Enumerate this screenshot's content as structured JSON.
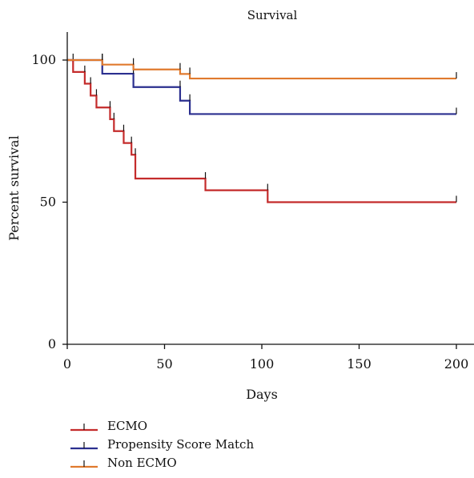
{
  "chart_data": {
    "type": "line",
    "step": true,
    "title": "Survival",
    "xlabel": "Days",
    "ylabel": "Percent survival",
    "xlim": [
      0,
      205
    ],
    "ylim": [
      0,
      110
    ],
    "xticks": [
      0,
      50,
      100,
      150,
      200
    ],
    "yticks": [
      0,
      50,
      100
    ],
    "grid": false,
    "legend_position": "bottom-left",
    "series": [
      {
        "name": "ECMO",
        "color": "#c42b2b",
        "censor_ticks": true,
        "points": [
          [
            0,
            100
          ],
          [
            3,
            95.8
          ],
          [
            9,
            91.7
          ],
          [
            12,
            87.5
          ],
          [
            15,
            83.3
          ],
          [
            22,
            79.2
          ],
          [
            24,
            75
          ],
          [
            29,
            70.8
          ],
          [
            33,
            66.7
          ],
          [
            35,
            58.3
          ],
          [
            71,
            54.2
          ],
          [
            103,
            50
          ],
          [
            200,
            50
          ]
        ]
      },
      {
        "name": "Propensity Score Match",
        "color": "#2b2f8f",
        "censor_ticks": true,
        "points": [
          [
            0,
            100
          ],
          [
            18,
            95.2
          ],
          [
            34,
            90.5
          ],
          [
            58,
            85.7
          ],
          [
            63,
            81
          ],
          [
            200,
            81
          ]
        ]
      },
      {
        "name": "Non ECMO",
        "color": "#e07a2e",
        "censor_ticks": true,
        "points": [
          [
            0,
            100
          ],
          [
            18,
            98.4
          ],
          [
            34,
            96.7
          ],
          [
            58,
            95.1
          ],
          [
            63,
            93.5
          ],
          [
            200,
            93.5
          ]
        ]
      }
    ]
  }
}
